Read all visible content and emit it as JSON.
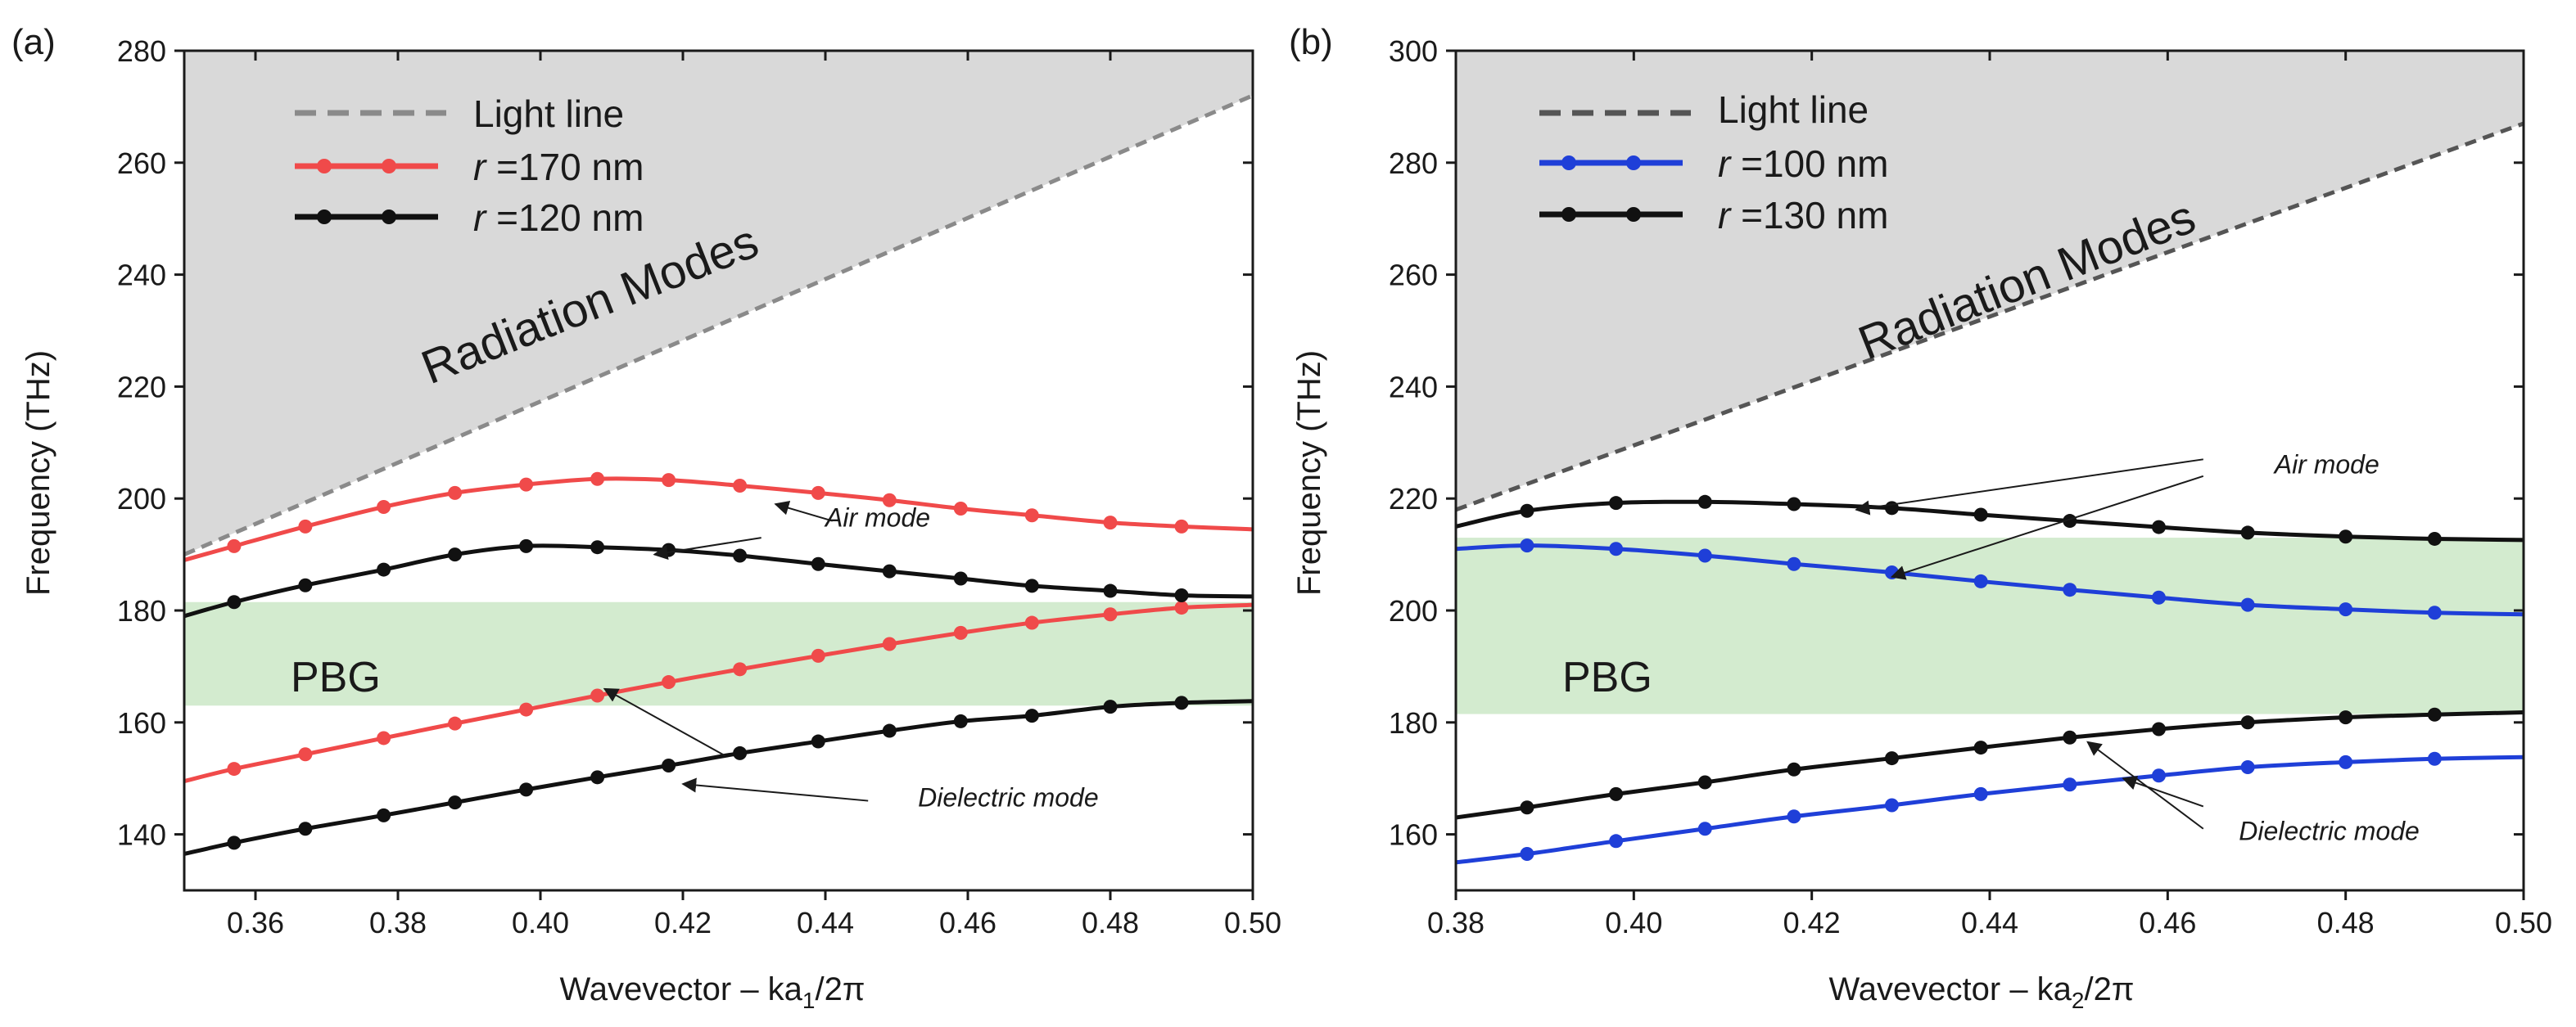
{
  "chart_data": [
    {
      "type": "line",
      "panel_label": "(a)",
      "xlabel": "Wavevector – ka",
      "xlabel_sub": "1",
      "xlabel_tail": "/2π",
      "ylabel": "Frequency (THz)",
      "xlim": [
        0.35,
        0.5
      ],
      "ylim": [
        130,
        280
      ],
      "xticks": [
        "0.36",
        "0.38",
        "0.40",
        "0.42",
        "0.44",
        "0.46",
        "0.48",
        "0.50"
      ],
      "yticks": [
        "140",
        "160",
        "180",
        "200",
        "220",
        "240",
        "260",
        "280"
      ],
      "light_line": {
        "name": "Light line",
        "x": [
          0.35,
          0.5
        ],
        "y": [
          190,
          272
        ],
        "color": "#8a8a8a"
      },
      "radiation_label": "Radiation Modes",
      "pbg": {
        "label": "PBG",
        "ymin": 163,
        "ymax": 181.5,
        "color": "#d3ebcf"
      },
      "series": [
        {
          "name": "r =170 nm",
          "r_symbol": "r",
          "r_value": " =170 nm",
          "color": "#f04a4a",
          "band": "air",
          "x": [
            0.35,
            0.357,
            0.367,
            0.378,
            0.388,
            0.398,
            0.408,
            0.418,
            0.428,
            0.439,
            0.449,
            0.459,
            0.469,
            0.48,
            0.49,
            0.5
          ],
          "y": [
            189,
            191.5,
            195,
            198.5,
            201,
            202.5,
            203.5,
            203.3,
            202.3,
            201,
            199.7,
            198.2,
            197,
            195.7,
            195,
            194.5
          ]
        },
        {
          "name": "r =170 nm dielectric",
          "color": "#f04a4a",
          "band": "dielectric",
          "x": [
            0.35,
            0.357,
            0.367,
            0.378,
            0.388,
            0.398,
            0.408,
            0.418,
            0.428,
            0.439,
            0.449,
            0.459,
            0.469,
            0.48,
            0.49,
            0.5
          ],
          "y": [
            149.5,
            151.7,
            154.3,
            157.2,
            159.8,
            162.3,
            164.8,
            167.2,
            169.5,
            171.9,
            174,
            176,
            177.8,
            179.3,
            180.5,
            181
          ]
        },
        {
          "name": "r =120 nm",
          "r_symbol": "r",
          "r_value": " =120 nm",
          "color": "#111111",
          "band": "air",
          "x": [
            0.35,
            0.357,
            0.367,
            0.378,
            0.388,
            0.398,
            0.408,
            0.418,
            0.428,
            0.439,
            0.449,
            0.459,
            0.469,
            0.48,
            0.49,
            0.5
          ],
          "y": [
            179,
            181.5,
            184.5,
            187.3,
            190,
            191.5,
            191.3,
            190.8,
            189.8,
            188.3,
            187,
            185.7,
            184.4,
            183.5,
            182.7,
            182.5
          ]
        },
        {
          "name": "r =120 nm dielectric",
          "color": "#111111",
          "band": "dielectric",
          "x": [
            0.35,
            0.357,
            0.367,
            0.378,
            0.388,
            0.398,
            0.408,
            0.418,
            0.428,
            0.439,
            0.449,
            0.459,
            0.469,
            0.48,
            0.49,
            0.5
          ],
          "y": [
            136.5,
            138.5,
            141,
            143.4,
            145.7,
            148,
            150.2,
            152.3,
            154.5,
            156.6,
            158.5,
            160.2,
            161.2,
            162.8,
            163.5,
            163.8
          ]
        }
      ],
      "annotations": [
        {
          "text": "Air mode",
          "x": 0.44,
          "y": 195,
          "arrows": [
            [
              0.441,
              196,
              0.433,
              199
            ],
            [
              0.431,
              193,
              0.416,
              190
            ]
          ]
        },
        {
          "text": "Dielectric mode",
          "x": 0.453,
          "y": 145,
          "arrows": [
            [
              0.446,
              146,
              0.42,
              149
            ],
            [
              0.426,
              154,
              0.409,
              166
            ]
          ]
        }
      ]
    },
    {
      "type": "line",
      "panel_label": "(b)",
      "xlabel": "Wavevector – ka",
      "xlabel_sub": "2",
      "xlabel_tail": "/2π",
      "ylabel": "Frequency (THz)",
      "xlim": [
        0.38,
        0.5
      ],
      "ylim": [
        150,
        300
      ],
      "xticks": [
        "0.38",
        "0.40",
        "0.42",
        "0.44",
        "0.46",
        "0.48",
        "0.50"
      ],
      "yticks": [
        "160",
        "180",
        "200",
        "220",
        "240",
        "260",
        "280",
        "300"
      ],
      "light_line": {
        "name": "Light line",
        "x": [
          0.38,
          0.5
        ],
        "y": [
          218,
          287
        ],
        "color": "#555555"
      },
      "radiation_label": "Radiation Modes",
      "pbg": {
        "label": "PBG",
        "ymin": 181.5,
        "ymax": 213,
        "color": "#d3ebcf"
      },
      "series": [
        {
          "name": "r =100 nm",
          "r_symbol": "r",
          "r_value": " =100 nm",
          "color": "#1f3fd8",
          "band": "air",
          "x": [
            0.38,
            0.388,
            0.398,
            0.408,
            0.418,
            0.429,
            0.439,
            0.449,
            0.459,
            0.469,
            0.48,
            0.49,
            0.5
          ],
          "y": [
            211,
            211.6,
            211,
            209.8,
            208.3,
            206.8,
            205.2,
            203.7,
            202.3,
            201,
            200.2,
            199.6,
            199.3
          ]
        },
        {
          "name": "r =100 nm dielectric",
          "color": "#1f3fd8",
          "band": "dielectric",
          "x": [
            0.38,
            0.388,
            0.398,
            0.408,
            0.418,
            0.429,
            0.439,
            0.449,
            0.459,
            0.469,
            0.48,
            0.49,
            0.5
          ],
          "y": [
            155,
            156.5,
            158.8,
            161,
            163.2,
            165.2,
            167.2,
            168.9,
            170.5,
            172,
            172.9,
            173.5,
            173.8
          ]
        },
        {
          "name": "r =130 nm",
          "r_symbol": "r",
          "r_value": " =130 nm",
          "color": "#111111",
          "band": "air",
          "x": [
            0.38,
            0.388,
            0.398,
            0.408,
            0.418,
            0.429,
            0.439,
            0.449,
            0.459,
            0.469,
            0.48,
            0.49,
            0.5
          ],
          "y": [
            215,
            217.8,
            219.2,
            219.4,
            219,
            218.3,
            217.1,
            216,
            214.9,
            213.9,
            213.2,
            212.8,
            212.6
          ]
        },
        {
          "name": "r =130 nm dielectric",
          "color": "#111111",
          "band": "dielectric",
          "x": [
            0.38,
            0.388,
            0.398,
            0.408,
            0.418,
            0.429,
            0.439,
            0.449,
            0.459,
            0.469,
            0.48,
            0.49,
            0.5
          ],
          "y": [
            163,
            164.8,
            167.2,
            169.3,
            171.6,
            173.6,
            175.5,
            177.3,
            178.8,
            180,
            180.9,
            181.4,
            181.8
          ]
        }
      ],
      "annotations": [
        {
          "text": "Air mode",
          "x": 0.472,
          "y": 224.5,
          "arrows": [
            [
              0.464,
              227,
              0.425,
              218
            ],
            [
              0.464,
              224,
              0.429,
              206
            ]
          ]
        },
        {
          "text": "Dielectric mode",
          "x": 0.468,
          "y": 159,
          "arrows": [
            [
              0.464,
              161,
              0.451,
              176.5
            ],
            [
              0.464,
              165,
              0.455,
              170
            ]
          ]
        }
      ]
    }
  ]
}
